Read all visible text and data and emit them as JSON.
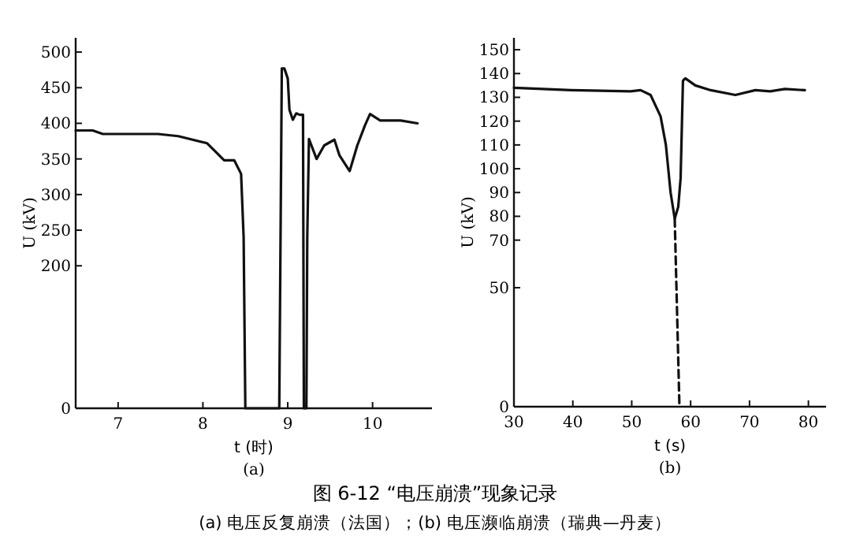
{
  "chart_data": [
    {
      "type": "line",
      "title": "图 6-12 “电压崩溃”现象记录",
      "subtitle": "(a) 电压反复崩溃（法国）；(b) 电压濒临崩溃（瑞典—丹麦）",
      "xlabel": "t (时)",
      "ylabel": "U (kV)",
      "annotations": [
        "(a)"
      ],
      "xlim": [
        6.5,
        10.7
      ],
      "xticks": [
        7,
        8,
        9,
        10
      ],
      "ylim": [
        0,
        520
      ],
      "yticks": [
        0,
        200,
        250,
        300,
        350,
        400,
        450,
        500
      ],
      "grid": false,
      "series": [
        {
          "color": "#111111",
          "x": [
            6.5,
            6.7,
            6.82,
            7.47,
            7.71,
            8.05,
            8.16,
            8.25,
            8.37,
            8.45,
            8.48,
            8.5,
            8.9,
            8.93,
            8.96,
            9.0,
            9.02,
            9.06,
            9.1,
            9.14,
            9.18,
            9.19,
            9.22,
            9.23,
            9.25,
            9.34,
            9.43,
            9.55,
            9.61,
            9.73,
            9.82,
            9.91,
            9.97,
            10.09,
            10.33,
            10.53
          ],
          "values": [
            390,
            390,
            385,
            385,
            382,
            372,
            359,
            348,
            348,
            329,
            240,
            0,
            0,
            477,
            477,
            463,
            419,
            405,
            414,
            412,
            412,
            0,
            0,
            240,
            378,
            350,
            369,
            377,
            355,
            333,
            369,
            397,
            413,
            404,
            404,
            400
          ]
        }
      ]
    },
    {
      "type": "line",
      "xlabel": "t (s)",
      "ylabel": "U (kV)",
      "annotations": [
        "(b)"
      ],
      "xlim": [
        30,
        83
      ],
      "xticks": [
        30,
        40,
        50,
        60,
        70,
        80
      ],
      "ylim": [
        0,
        155
      ],
      "yticks": [
        0,
        50,
        70,
        80,
        90,
        100,
        110,
        120,
        130,
        140,
        150
      ],
      "grid": false,
      "series": [
        {
          "color": "#111111",
          "x": [
            30,
            39.7,
            49.8,
            51.5,
            53.2,
            54.9,
            55.8,
            56.6,
            57.3,
            57.9,
            58.3,
            58.7,
            59.1,
            60.8,
            63.4,
            67.6,
            71,
            73.5,
            76,
            79.4
          ],
          "values": [
            134,
            133,
            132.5,
            133,
            131,
            122,
            110,
            90,
            79,
            84,
            96,
            137,
            138,
            135,
            133,
            131,
            133,
            132.5,
            133.5,
            133
          ]
        },
        {
          "type": "line",
          "line_style": "dashed",
          "color": "#111111",
          "x": [
            57.3,
            58.1
          ],
          "values": [
            79,
            0
          ]
        }
      ]
    }
  ]
}
